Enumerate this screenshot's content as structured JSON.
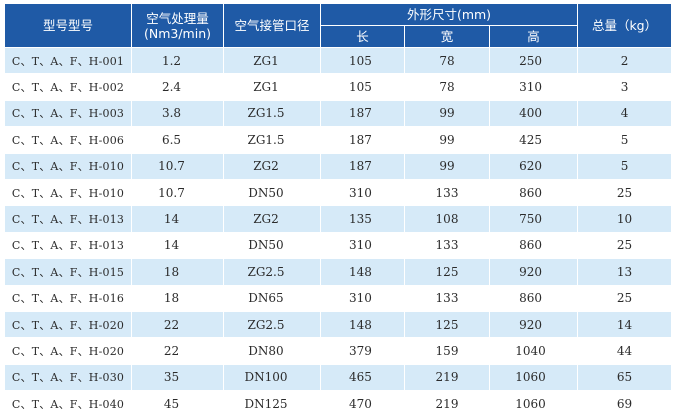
{
  "table": {
    "headers": {
      "model": "型号型号",
      "air_flow_line1": "空气处理量",
      "air_flow_line2": "(Nm3/min)",
      "pipe_diameter": "空气接管口径",
      "dimensions": "外形尺寸(mm)",
      "weight": "总量（kg）",
      "length": "长",
      "width": "宽",
      "height": "高"
    },
    "rows": [
      {
        "model": "C、T、A、F、H-001",
        "flow": "1.2",
        "pipe": "ZG1",
        "length": "105",
        "width": "78",
        "height": "250",
        "weight": "2"
      },
      {
        "model": "C、T、A、F、H-002",
        "flow": "2.4",
        "pipe": "ZG1",
        "length": "105",
        "width": "78",
        "height": "310",
        "weight": "3"
      },
      {
        "model": "C、T、A、F、H-003",
        "flow": "3.8",
        "pipe": "ZG1.5",
        "length": "187",
        "width": "99",
        "height": "400",
        "weight": "4"
      },
      {
        "model": "C、T、A、F、H-006",
        "flow": "6.5",
        "pipe": "ZG1.5",
        "length": "187",
        "width": "99",
        "height": "425",
        "weight": "5"
      },
      {
        "model": "C、T、A、F、H-010",
        "flow": "10.7",
        "pipe": "ZG2",
        "length": "187",
        "width": "99",
        "height": "620",
        "weight": "5"
      },
      {
        "model": "C、T、A、F、H-010",
        "flow": "10.7",
        "pipe": "DN50",
        "length": "310",
        "width": "133",
        "height": "860",
        "weight": "25"
      },
      {
        "model": "C、T、A、F、H-013",
        "flow": "14",
        "pipe": "ZG2",
        "length": "135",
        "width": "108",
        "height": "750",
        "weight": "10"
      },
      {
        "model": "C、T、A、F、H-013",
        "flow": "14",
        "pipe": "DN50",
        "length": "310",
        "width": "133",
        "height": "860",
        "weight": "25"
      },
      {
        "model": "C、T、A、F、H-015",
        "flow": "18",
        "pipe": "ZG2.5",
        "length": "148",
        "width": "125",
        "height": "920",
        "weight": "13"
      },
      {
        "model": "C、T、A、F、H-016",
        "flow": "18",
        "pipe": "DN65",
        "length": "310",
        "width": "133",
        "height": "860",
        "weight": "25"
      },
      {
        "model": "C、T、A、F、H-020",
        "flow": "22",
        "pipe": "ZG2.5",
        "length": "148",
        "width": "125",
        "height": "920",
        "weight": "14"
      },
      {
        "model": "C、T、A、F、H-020",
        "flow": "22",
        "pipe": "DN80",
        "length": "379",
        "width": "159",
        "height": "1040",
        "weight": "44"
      },
      {
        "model": "C、T、A、F、H-030",
        "flow": "35",
        "pipe": "DN100",
        "length": "465",
        "width": "219",
        "height": "1060",
        "weight": "65"
      },
      {
        "model": "C、T、A、F、H-040",
        "flow": "45",
        "pipe": "DN125",
        "length": "470",
        "width": "219",
        "height": "1060",
        "weight": "69"
      }
    ]
  },
  "colors": {
    "header_bg": "#1f5aa6",
    "header_text": "#ffffff",
    "stripe_row_bg": "#d6eaf8",
    "plain_row_bg": "#ffffff"
  }
}
